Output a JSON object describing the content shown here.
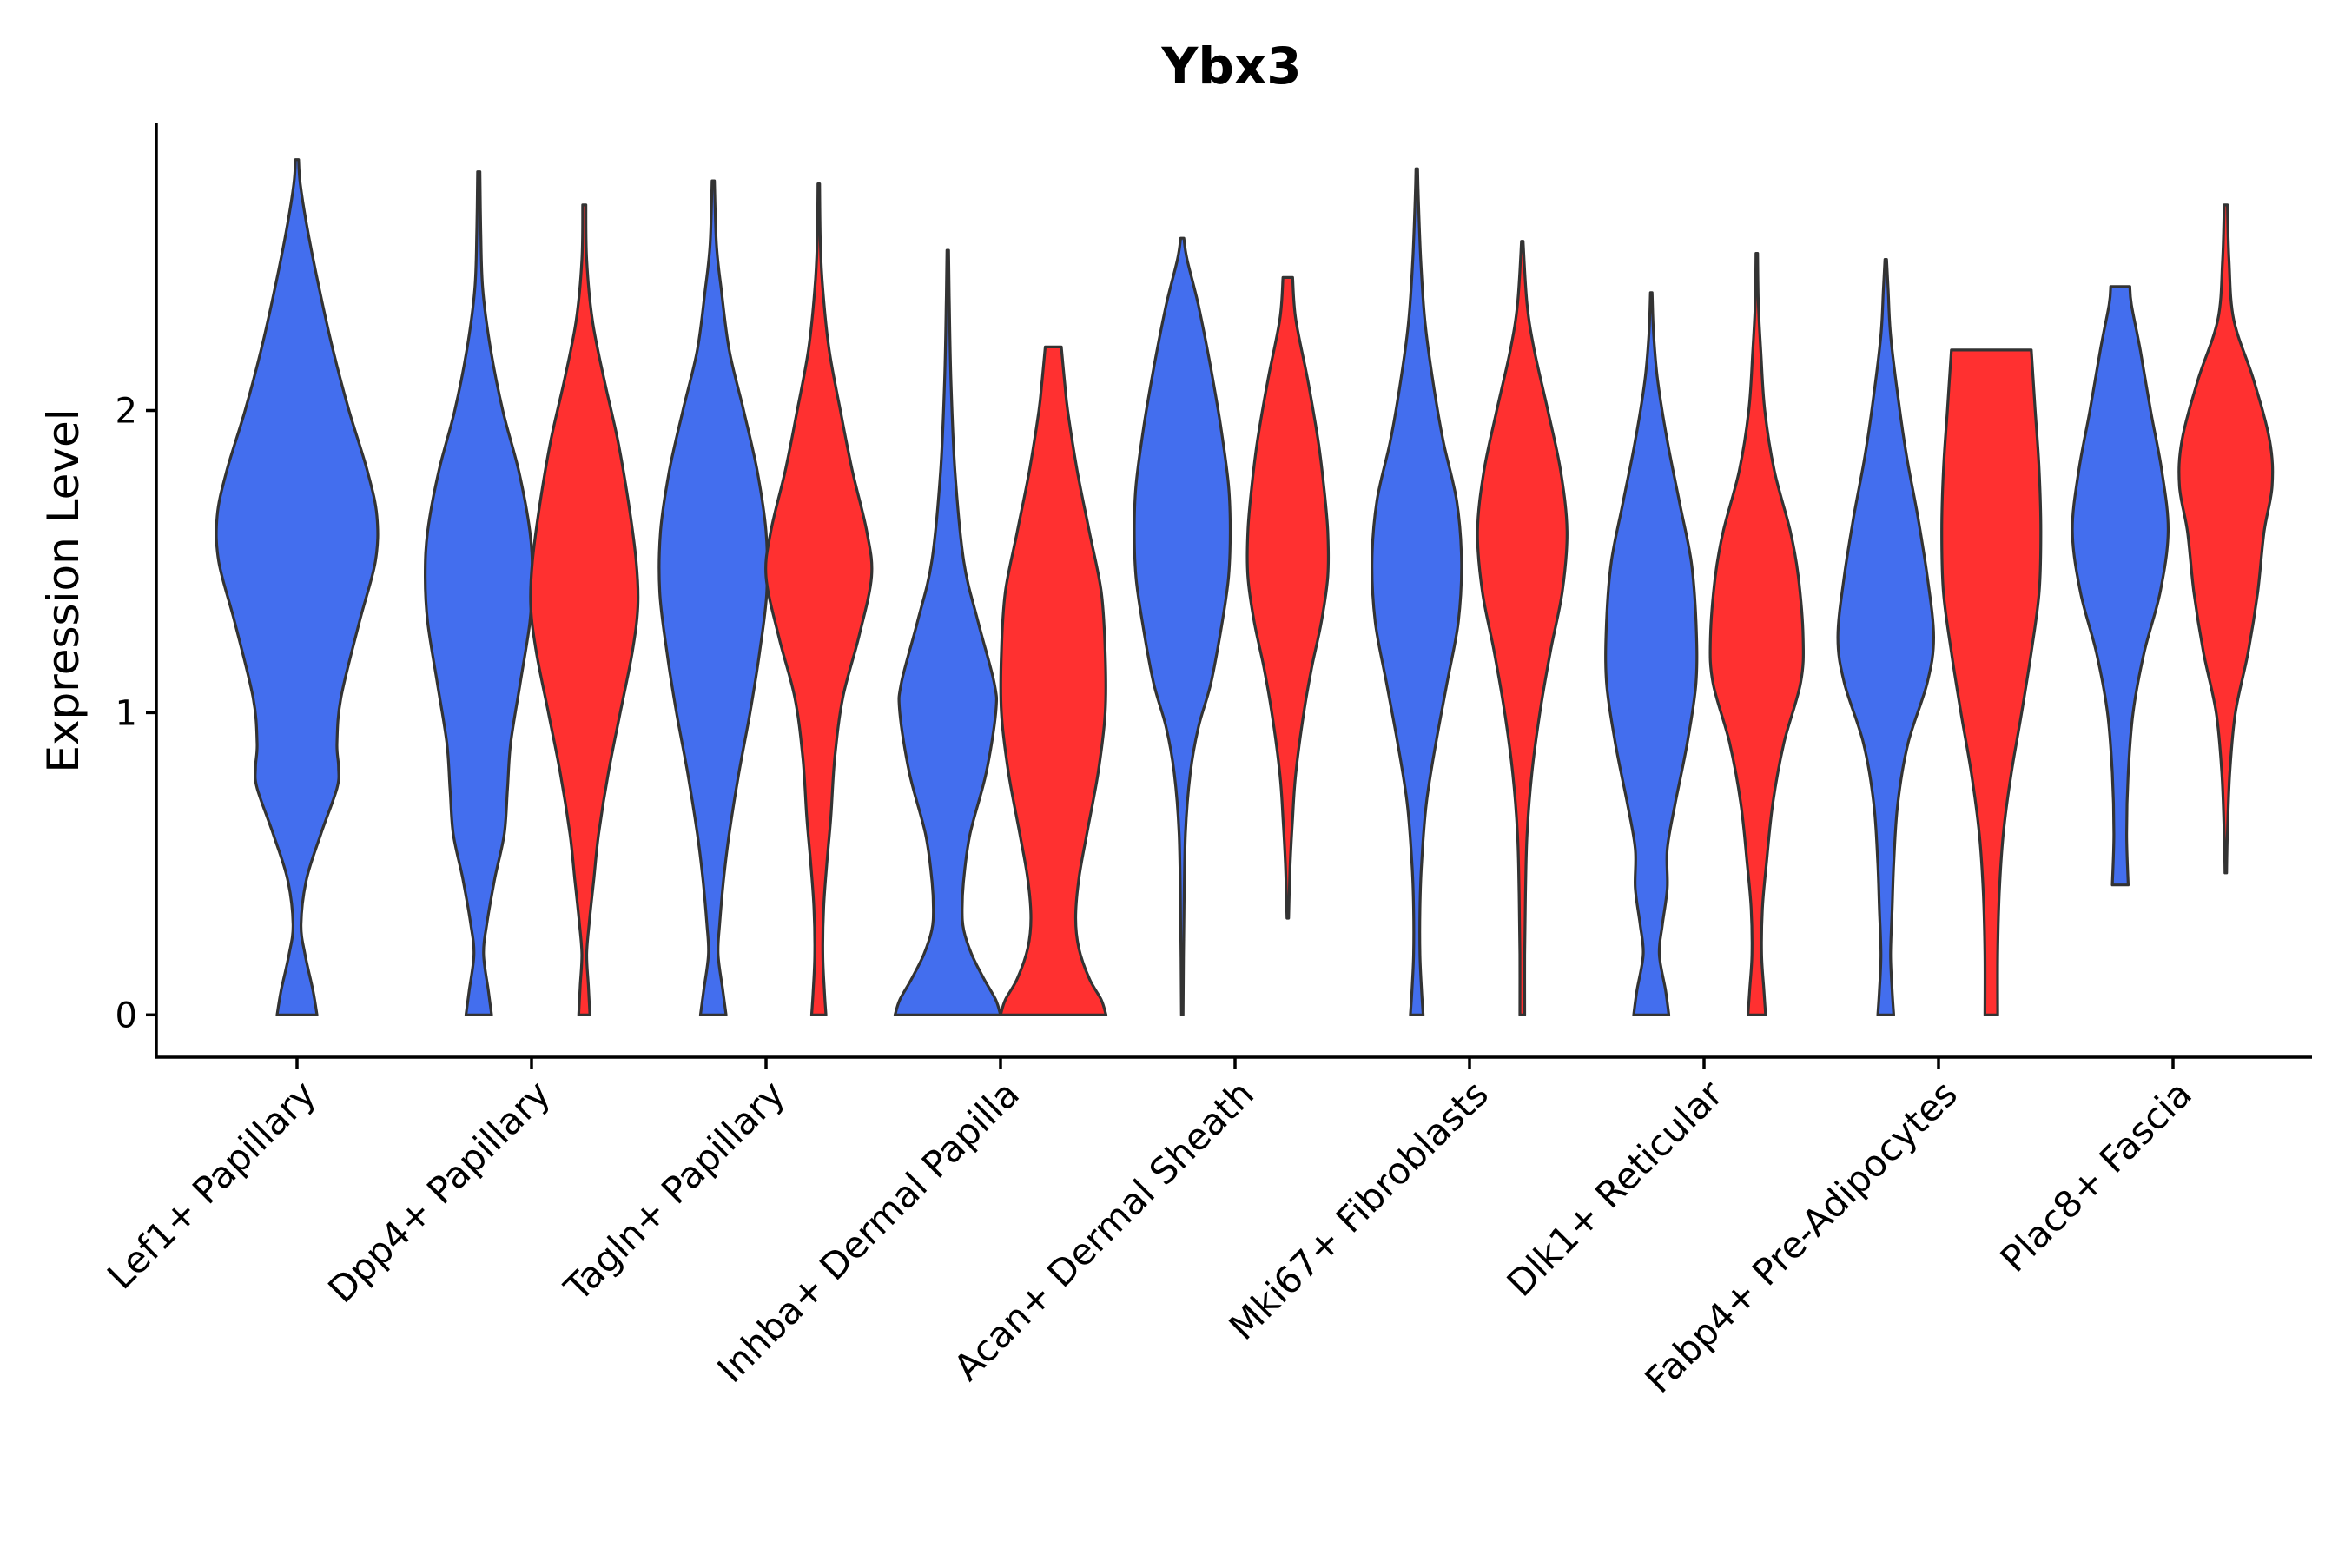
{
  "chart_data": {
    "type": "violin",
    "title": "Ybx3",
    "xlabel": "",
    "ylabel": "Expression Level",
    "ylim": [
      -0.14,
      2.95
    ],
    "yticks": [
      0,
      1,
      2
    ],
    "grid": false,
    "legend": "none",
    "colors": {
      "group_a": "#436EEE",
      "group_b": "#FF3030"
    },
    "categories": [
      "Lef1+ Papillary",
      "Dpp4+ Papillary",
      "Tagln+ Papillary",
      "Inhba+ Dermal Papilla",
      "Acan+ Dermal Sheath",
      "Mki67+ Fibroblasts",
      "Dlk1+ Reticular",
      "Fabp4+ Pre-Adipocytes",
      "Plac8+ Fascia"
    ],
    "violins": [
      {
        "category": 0,
        "group": "group_a",
        "offset": 0,
        "min": 0,
        "max": 2.83,
        "profile": [
          [
            0,
            0.25
          ],
          [
            0.08,
            0.2
          ],
          [
            0.2,
            0.1
          ],
          [
            0.3,
            0.05
          ],
          [
            0.45,
            0.12
          ],
          [
            0.6,
            0.3
          ],
          [
            0.75,
            0.5
          ],
          [
            0.82,
            0.52
          ],
          [
            0.9,
            0.5
          ],
          [
            1.05,
            0.55
          ],
          [
            1.3,
            0.78
          ],
          [
            1.5,
            0.98
          ],
          [
            1.65,
            1.0
          ],
          [
            1.8,
            0.88
          ],
          [
            2.0,
            0.65
          ],
          [
            2.2,
            0.45
          ],
          [
            2.4,
            0.28
          ],
          [
            2.6,
            0.13
          ],
          [
            2.75,
            0.04
          ],
          [
            2.83,
            0.02
          ]
        ]
      },
      {
        "category": 1,
        "group": "group_a",
        "offset": -0.225,
        "min": 0,
        "max": 2.79,
        "profile": [
          [
            0,
            0.16
          ],
          [
            0.08,
            0.12
          ],
          [
            0.2,
            0.06
          ],
          [
            0.3,
            0.1
          ],
          [
            0.45,
            0.2
          ],
          [
            0.6,
            0.32
          ],
          [
            0.75,
            0.36
          ],
          [
            0.9,
            0.4
          ],
          [
            1.1,
            0.52
          ],
          [
            1.3,
            0.64
          ],
          [
            1.45,
            0.67
          ],
          [
            1.6,
            0.64
          ],
          [
            1.8,
            0.5
          ],
          [
            2.0,
            0.3
          ],
          [
            2.2,
            0.15
          ],
          [
            2.4,
            0.05
          ],
          [
            2.6,
            0.025
          ],
          [
            2.79,
            0.015
          ]
        ]
      },
      {
        "category": 1,
        "group": "group_b",
        "offset": 0.225,
        "min": 0,
        "max": 2.68,
        "profile": [
          [
            0,
            0.07
          ],
          [
            0.1,
            0.05
          ],
          [
            0.2,
            0.03
          ],
          [
            0.3,
            0.06
          ],
          [
            0.45,
            0.12
          ],
          [
            0.6,
            0.18
          ],
          [
            0.8,
            0.3
          ],
          [
            1.0,
            0.45
          ],
          [
            1.2,
            0.6
          ],
          [
            1.35,
            0.67
          ],
          [
            1.5,
            0.65
          ],
          [
            1.7,
            0.55
          ],
          [
            1.9,
            0.42
          ],
          [
            2.1,
            0.25
          ],
          [
            2.3,
            0.1
          ],
          [
            2.5,
            0.03
          ],
          [
            2.68,
            0.02
          ]
        ]
      },
      {
        "category": 2,
        "group": "group_a",
        "offset": -0.225,
        "min": 0,
        "max": 2.76,
        "profile": [
          [
            0,
            0.16
          ],
          [
            0.08,
            0.12
          ],
          [
            0.2,
            0.06
          ],
          [
            0.3,
            0.08
          ],
          [
            0.45,
            0.13
          ],
          [
            0.6,
            0.2
          ],
          [
            0.8,
            0.32
          ],
          [
            1.0,
            0.46
          ],
          [
            1.2,
            0.58
          ],
          [
            1.4,
            0.67
          ],
          [
            1.6,
            0.66
          ],
          [
            1.8,
            0.55
          ],
          [
            2.0,
            0.38
          ],
          [
            2.2,
            0.2
          ],
          [
            2.4,
            0.1
          ],
          [
            2.55,
            0.04
          ],
          [
            2.76,
            0.015
          ]
        ]
      },
      {
        "category": 2,
        "group": "group_b",
        "offset": 0.225,
        "min": 0,
        "max": 2.75,
        "profile": [
          [
            0,
            0.09
          ],
          [
            0.08,
            0.07
          ],
          [
            0.2,
            0.05
          ],
          [
            0.35,
            0.06
          ],
          [
            0.5,
            0.1
          ],
          [
            0.65,
            0.15
          ],
          [
            0.85,
            0.2
          ],
          [
            1.05,
            0.3
          ],
          [
            1.25,
            0.5
          ],
          [
            1.45,
            0.66
          ],
          [
            1.6,
            0.6
          ],
          [
            1.8,
            0.42
          ],
          [
            2.0,
            0.27
          ],
          [
            2.2,
            0.13
          ],
          [
            2.4,
            0.05
          ],
          [
            2.55,
            0.02
          ],
          [
            2.75,
            0.01
          ]
        ]
      },
      {
        "category": 3,
        "group": "group_a",
        "offset": -0.225,
        "min": 0,
        "max": 2.53,
        "profile": [
          [
            0,
            0.66
          ],
          [
            0.05,
            0.6
          ],
          [
            0.12,
            0.45
          ],
          [
            0.2,
            0.3
          ],
          [
            0.28,
            0.2
          ],
          [
            0.35,
            0.18
          ],
          [
            0.45,
            0.2
          ],
          [
            0.6,
            0.28
          ],
          [
            0.8,
            0.48
          ],
          [
            1.0,
            0.6
          ],
          [
            1.1,
            0.58
          ],
          [
            1.3,
            0.38
          ],
          [
            1.5,
            0.2
          ],
          [
            1.8,
            0.09
          ],
          [
            2.1,
            0.04
          ],
          [
            2.35,
            0.02
          ],
          [
            2.53,
            0.01
          ]
        ]
      },
      {
        "category": 3,
        "group": "group_b",
        "offset": 0.225,
        "min": 0,
        "max": 2.21,
        "profile": [
          [
            0,
            0.66
          ],
          [
            0.05,
            0.6
          ],
          [
            0.12,
            0.45
          ],
          [
            0.22,
            0.32
          ],
          [
            0.32,
            0.28
          ],
          [
            0.45,
            0.32
          ],
          [
            0.6,
            0.42
          ],
          [
            0.8,
            0.56
          ],
          [
            1.0,
            0.65
          ],
          [
            1.2,
            0.65
          ],
          [
            1.4,
            0.6
          ],
          [
            1.6,
            0.45
          ],
          [
            1.8,
            0.3
          ],
          [
            2.0,
            0.18
          ],
          [
            2.1,
            0.14
          ],
          [
            2.21,
            0.1
          ]
        ]
      },
      {
        "category": 4,
        "group": "group_a",
        "offset": -0.225,
        "min": 0,
        "max": 2.57,
        "profile": [
          [
            0,
            0.01
          ],
          [
            0.3,
            0.02
          ],
          [
            0.6,
            0.04
          ],
          [
            0.8,
            0.1
          ],
          [
            0.95,
            0.2
          ],
          [
            1.1,
            0.36
          ],
          [
            1.3,
            0.5
          ],
          [
            1.45,
            0.58
          ],
          [
            1.6,
            0.6
          ],
          [
            1.75,
            0.58
          ],
          [
            1.95,
            0.48
          ],
          [
            2.15,
            0.35
          ],
          [
            2.35,
            0.2
          ],
          [
            2.5,
            0.06
          ],
          [
            2.57,
            0.02
          ]
        ]
      },
      {
        "category": 4,
        "group": "group_b",
        "offset": 0.225,
        "min": 0.32,
        "max": 2.44,
        "profile": [
          [
            0.32,
            0.01
          ],
          [
            0.5,
            0.03
          ],
          [
            0.65,
            0.06
          ],
          [
            0.8,
            0.1
          ],
          [
            1.0,
            0.2
          ],
          [
            1.15,
            0.3
          ],
          [
            1.3,
            0.42
          ],
          [
            1.45,
            0.5
          ],
          [
            1.6,
            0.5
          ],
          [
            1.75,
            0.45
          ],
          [
            1.9,
            0.38
          ],
          [
            2.1,
            0.25
          ],
          [
            2.3,
            0.1
          ],
          [
            2.44,
            0.06
          ]
        ]
      },
      {
        "category": 5,
        "group": "group_a",
        "offset": -0.225,
        "min": 0,
        "max": 2.8,
        "profile": [
          [
            0,
            0.08
          ],
          [
            0.08,
            0.06
          ],
          [
            0.2,
            0.04
          ],
          [
            0.35,
            0.04
          ],
          [
            0.5,
            0.06
          ],
          [
            0.7,
            0.12
          ],
          [
            0.9,
            0.24
          ],
          [
            1.1,
            0.38
          ],
          [
            1.3,
            0.52
          ],
          [
            1.5,
            0.56
          ],
          [
            1.7,
            0.5
          ],
          [
            1.9,
            0.33
          ],
          [
            2.1,
            0.2
          ],
          [
            2.3,
            0.1
          ],
          [
            2.5,
            0.05
          ],
          [
            2.7,
            0.02
          ],
          [
            2.8,
            0.01
          ]
        ]
      },
      {
        "category": 5,
        "group": "group_b",
        "offset": 0.225,
        "min": 0,
        "max": 2.56,
        "profile": [
          [
            0,
            0.03
          ],
          [
            0.2,
            0.03
          ],
          [
            0.4,
            0.04
          ],
          [
            0.6,
            0.06
          ],
          [
            0.8,
            0.12
          ],
          [
            1.0,
            0.22
          ],
          [
            1.2,
            0.35
          ],
          [
            1.4,
            0.5
          ],
          [
            1.6,
            0.56
          ],
          [
            1.8,
            0.48
          ],
          [
            2.0,
            0.32
          ],
          [
            2.2,
            0.15
          ],
          [
            2.35,
            0.06
          ],
          [
            2.56,
            0.01
          ]
        ]
      },
      {
        "category": 6,
        "group": "group_a",
        "offset": -0.225,
        "min": 0,
        "max": 2.39,
        "profile": [
          [
            0,
            0.22
          ],
          [
            0.08,
            0.18
          ],
          [
            0.2,
            0.1
          ],
          [
            0.3,
            0.14
          ],
          [
            0.42,
            0.2
          ],
          [
            0.55,
            0.2
          ],
          [
            0.7,
            0.3
          ],
          [
            0.9,
            0.45
          ],
          [
            1.1,
            0.56
          ],
          [
            1.3,
            0.56
          ],
          [
            1.5,
            0.5
          ],
          [
            1.7,
            0.35
          ],
          [
            1.9,
            0.2
          ],
          [
            2.1,
            0.08
          ],
          [
            2.25,
            0.03
          ],
          [
            2.39,
            0.01
          ]
        ]
      },
      {
        "category": 6,
        "group": "group_b",
        "offset": 0.225,
        "min": 0,
        "max": 2.52,
        "profile": [
          [
            0,
            0.11
          ],
          [
            0.08,
            0.09
          ],
          [
            0.2,
            0.06
          ],
          [
            0.35,
            0.07
          ],
          [
            0.5,
            0.12
          ],
          [
            0.7,
            0.2
          ],
          [
            0.9,
            0.34
          ],
          [
            1.1,
            0.55
          ],
          [
            1.25,
            0.58
          ],
          [
            1.45,
            0.52
          ],
          [
            1.6,
            0.42
          ],
          [
            1.8,
            0.22
          ],
          [
            2.0,
            0.1
          ],
          [
            2.2,
            0.05
          ],
          [
            2.35,
            0.02
          ],
          [
            2.52,
            0.01
          ]
        ]
      },
      {
        "category": 7,
        "group": "group_a",
        "offset": -0.225,
        "min": 0,
        "max": 2.5,
        "profile": [
          [
            0,
            0.1
          ],
          [
            0.08,
            0.08
          ],
          [
            0.2,
            0.06
          ],
          [
            0.35,
            0.08
          ],
          [
            0.5,
            0.1
          ],
          [
            0.7,
            0.15
          ],
          [
            0.9,
            0.28
          ],
          [
            1.1,
            0.52
          ],
          [
            1.25,
            0.6
          ],
          [
            1.45,
            0.52
          ],
          [
            1.65,
            0.4
          ],
          [
            1.85,
            0.26
          ],
          [
            2.05,
            0.15
          ],
          [
            2.25,
            0.06
          ],
          [
            2.4,
            0.03
          ],
          [
            2.5,
            0.01
          ]
        ]
      },
      {
        "category": 7,
        "group": "group_b",
        "offset": 0.225,
        "min": 0,
        "max": 2.2,
        "profile": [
          [
            0,
            0.08
          ],
          [
            0.2,
            0.08
          ],
          [
            0.4,
            0.1
          ],
          [
            0.6,
            0.15
          ],
          [
            0.8,
            0.25
          ],
          [
            1.0,
            0.38
          ],
          [
            1.2,
            0.5
          ],
          [
            1.4,
            0.6
          ],
          [
            1.6,
            0.62
          ],
          [
            1.8,
            0.6
          ],
          [
            2.0,
            0.55
          ],
          [
            2.2,
            0.5
          ]
        ]
      },
      {
        "category": 8,
        "group": "group_a",
        "offset": -0.225,
        "min": 0.43,
        "max": 2.41,
        "profile": [
          [
            0.43,
            0.1
          ],
          [
            0.6,
            0.08
          ],
          [
            0.8,
            0.1
          ],
          [
            1.0,
            0.16
          ],
          [
            1.2,
            0.3
          ],
          [
            1.4,
            0.5
          ],
          [
            1.6,
            0.6
          ],
          [
            1.8,
            0.52
          ],
          [
            2.0,
            0.38
          ],
          [
            2.2,
            0.25
          ],
          [
            2.35,
            0.14
          ],
          [
            2.41,
            0.12
          ]
        ]
      },
      {
        "category": 8,
        "group": "group_b",
        "offset": 0.225,
        "min": 0.47,
        "max": 2.68,
        "profile": [
          [
            0.47,
            0.01
          ],
          [
            0.6,
            0.02
          ],
          [
            0.8,
            0.05
          ],
          [
            1.0,
            0.12
          ],
          [
            1.2,
            0.28
          ],
          [
            1.4,
            0.4
          ],
          [
            1.6,
            0.48
          ],
          [
            1.75,
            0.58
          ],
          [
            1.9,
            0.55
          ],
          [
            2.1,
            0.35
          ],
          [
            2.3,
            0.1
          ],
          [
            2.5,
            0.04
          ],
          [
            2.68,
            0.02
          ]
        ]
      }
    ]
  }
}
